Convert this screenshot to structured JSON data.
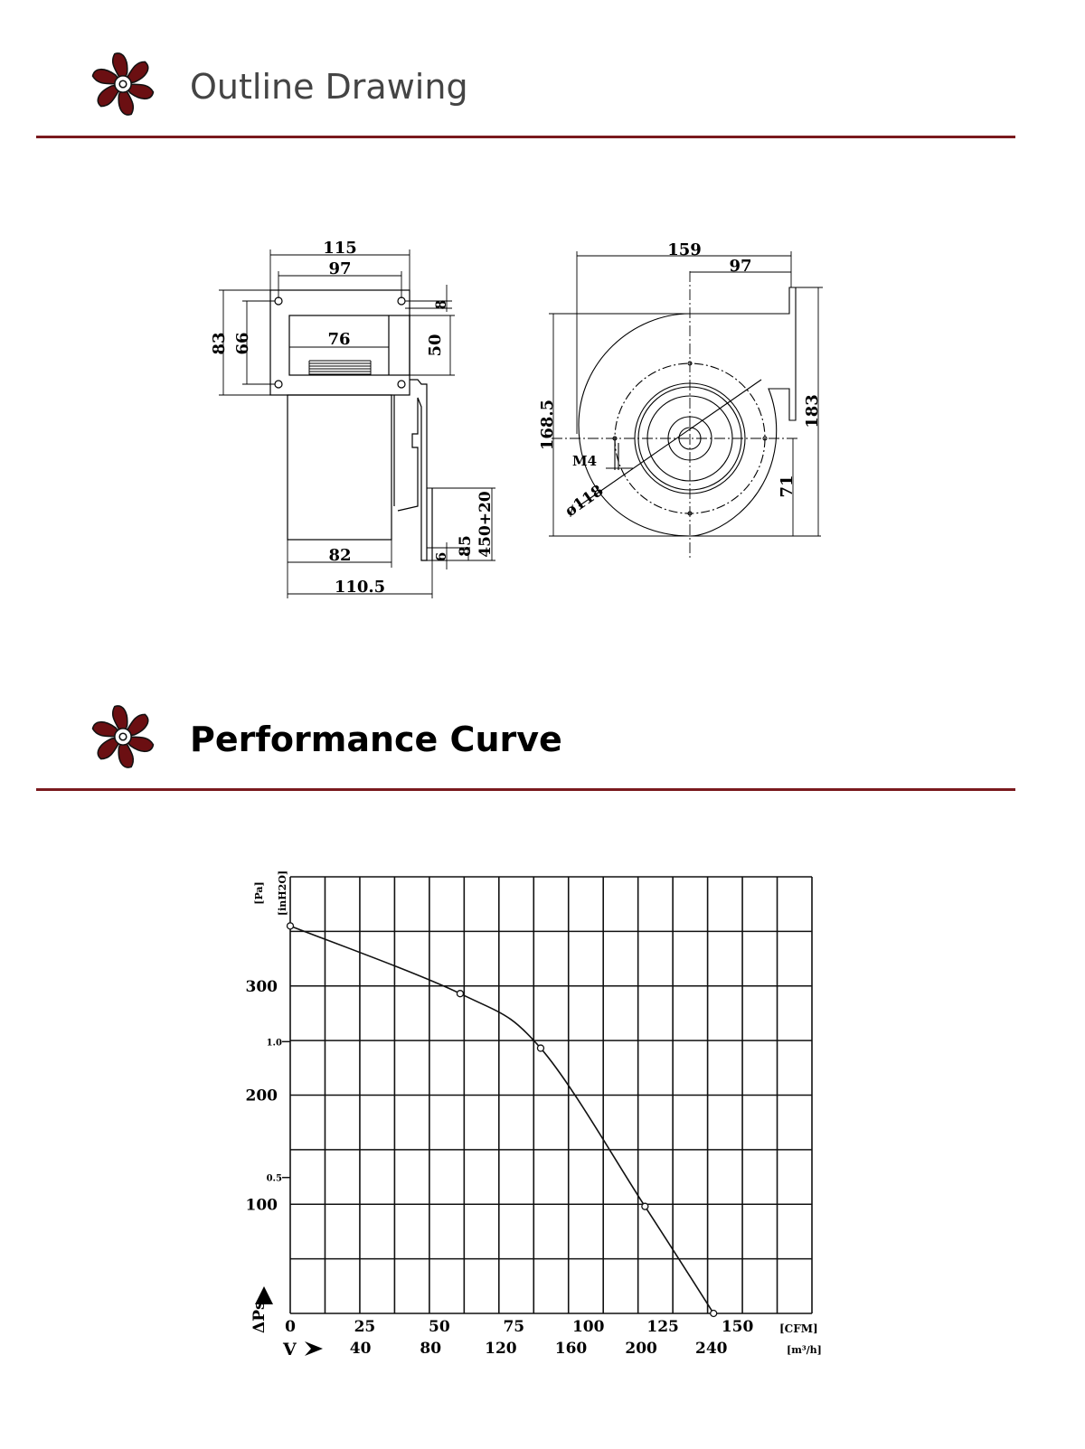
{
  "sections": {
    "outline": {
      "title": "Outline Drawing",
      "icon": "fan-icon"
    },
    "performance": {
      "title": "Performance Curve",
      "icon": "fan-icon"
    }
  },
  "colors": {
    "accent": "#7a1a1e",
    "fan_blade": "#6b0f12"
  },
  "drawing": {
    "front": {
      "w115": "115",
      "w97": "97",
      "h83": "83",
      "h66": "66",
      "w76": "76",
      "h50": "50",
      "d8": "8",
      "w82": "82",
      "w110": "110.5",
      "d6": "6",
      "d85": "85",
      "cable": "450+20"
    },
    "side": {
      "w159": "159",
      "w97": "97",
      "h168": "168.5",
      "h183": "183",
      "h71": "71",
      "m4": "M4",
      "dia": "ø118"
    }
  },
  "chart_data": {
    "type": "line",
    "title": "",
    "x_unit_primary": "[CFM]",
    "x_unit_secondary": "[m³/h]",
    "y_unit_primary": "[Pa]",
    "y_unit_secondary": "[inH2O]",
    "y_axis_symbol": "ΔPs",
    "x_axis_symbol": "V",
    "xlim": [
      0,
      175
    ],
    "ylim": [
      0,
      400
    ],
    "x_ticks_cfm": [
      "0",
      "25",
      "50",
      "75",
      "100",
      "125",
      "150"
    ],
    "x_ticks_m3h": [
      "40",
      "80",
      "120",
      "160",
      "200",
      "240"
    ],
    "y_ticks_pa": [
      "300",
      "200",
      "100"
    ],
    "y_ticks_inh2o": [
      "1.0",
      "0.5"
    ],
    "grid": true,
    "series": [
      {
        "x": [
          0,
          57,
          84,
          119,
          142
        ],
        "y": [
          355,
          293,
          243,
          98,
          0
        ]
      }
    ]
  }
}
